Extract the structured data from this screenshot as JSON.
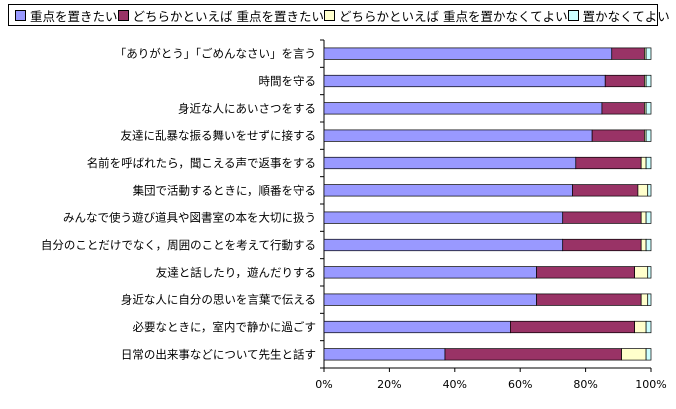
{
  "chart_data": {
    "type": "bar",
    "orientation": "horizontal",
    "stacked": "percent",
    "categories": [
      "「ありがとう」「ごめんなさい」を言う",
      "時間を守る",
      "身近な人にあいさつをする",
      "友達に乱暴な振る舞いをせずに接する",
      "名前を呼ばれたら，聞こえる声で返事をする",
      "集団で活動するときに，順番を守る",
      "みんなで使う遊び道具や図書室の本を大切に扱う",
      "自分のことだけでなく，周囲のことを考えて行動する",
      "友達と話したり，遊んだりする",
      "身近な人に自分の思いを言葉で伝える",
      "必要なときに，室内で静かに過ごす",
      "日常の出来事などについて先生と話す"
    ],
    "series": [
      {
        "name": "重点を置きたい",
        "color": "#9999ff",
        "values": [
          88,
          86,
          85,
          82,
          77,
          76,
          73,
          73,
          65,
          65,
          57,
          37
        ]
      },
      {
        "name": "どちらかといえば 重点を置きたい",
        "color": "#993366",
        "values": [
          10,
          12,
          13,
          16,
          20,
          20,
          24,
          24,
          30,
          32,
          38,
          54
        ]
      },
      {
        "name": "どちらかといえば 重点を置かなくてよい",
        "color": "#ffffcc",
        "values": [
          0.5,
          0.5,
          0.5,
          0.5,
          1.5,
          3,
          1.5,
          1.5,
          4,
          2,
          3.5,
          7.5
        ]
      },
      {
        "name": "置かなくてよい",
        "color": "#ccffff",
        "values": [
          1.5,
          1.5,
          1.5,
          1.5,
          1.5,
          1,
          1.5,
          1.5,
          1,
          1,
          1.5,
          1.5
        ]
      }
    ],
    "xlim": [
      0,
      100
    ],
    "xticks": [
      "0%",
      "20%",
      "40%",
      "60%",
      "80%",
      "100%"
    ],
    "legend": "top",
    "grid": false
  }
}
